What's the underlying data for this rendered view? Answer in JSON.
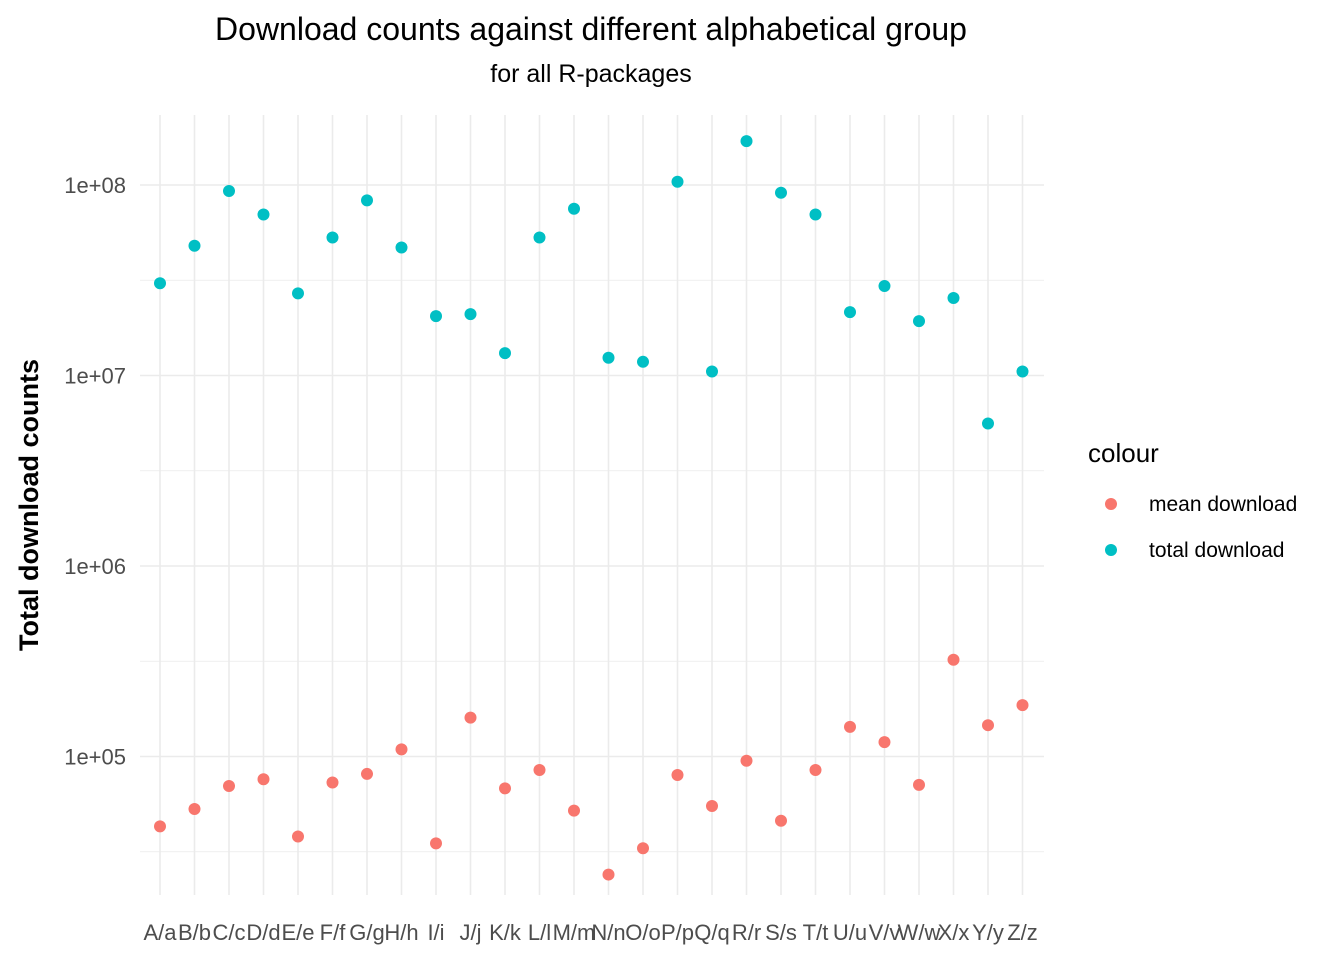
{
  "chart_data": {
    "type": "scatter",
    "title": "Download counts against different alphabetical group",
    "subtitle": "for all R-packages",
    "xlabel": "",
    "ylabel": "Total download counts",
    "yscale": "log10",
    "ylim": [
      20000,
      260000000
    ],
    "ytick_values": [
      100000,
      1000000,
      10000000,
      100000000
    ],
    "ytick_labels": [
      "1e+05",
      "1e+06",
      "1e+07",
      "1e+08"
    ],
    "grid": true,
    "legend_placement": "right",
    "legend_title": "colour",
    "categories": [
      "A/a",
      "B/b",
      "C/c",
      "D/d",
      "E/e",
      "F/f",
      "G/g",
      "H/h",
      "I/i",
      "J/j",
      "K/k",
      "L/l",
      "M/m",
      "N/n",
      "O/o",
      "P/p",
      "Q/q",
      "R/r",
      "S/s",
      "T/t",
      "U/u",
      "V/v",
      "W/w",
      "X/x",
      "Y/y",
      "Z/z"
    ],
    "series": [
      {
        "name": "mean download",
        "color": "#F8766D",
        "values": [
          43000,
          53000,
          70000,
          76000,
          38000,
          73000,
          81000,
          109000,
          35000,
          160000,
          68000,
          85000,
          52000,
          24000,
          33000,
          80000,
          55000,
          95000,
          46000,
          85000,
          143000,
          119000,
          71000,
          322000,
          146000,
          186000
        ]
      },
      {
        "name": "total download",
        "color": "#00BFC4",
        "values": [
          30500000,
          48000000,
          93000000,
          70000000,
          27000000,
          53000000,
          83000000,
          47000000,
          20500000,
          21000000,
          13100000,
          53000000,
          75000000,
          12400000,
          11800000,
          104000000,
          10500000,
          170000000,
          91000000,
          70000000,
          21500000,
          29500000,
          19300000,
          25500000,
          5600000,
          10500000
        ]
      }
    ]
  }
}
